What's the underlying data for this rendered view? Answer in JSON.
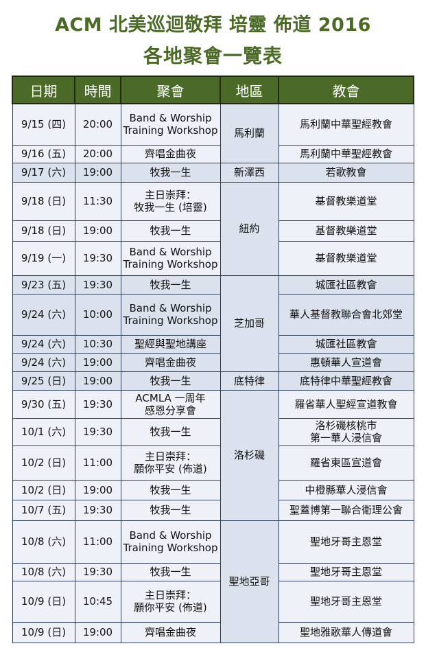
{
  "title_line1": "ACM 北美巡迴敬拜 培靈 佈道 2016",
  "title_line2": "各地聚會一覽表",
  "headers": [
    "日期",
    "時間",
    "聚會",
    "地區",
    "教會"
  ],
  "rows": [
    {
      "date": "9/15 (四)",
      "time": "20:00",
      "event": [
        "Band & Worship",
        "Training Workshop"
      ],
      "church": [
        "馬利蘭中華聖經教會"
      ]
    },
    {
      "date": "9/16 (五)",
      "time": "20:00",
      "event": [
        "齊唱金曲夜"
      ],
      "church": [
        "馬利蘭中華聖經教會"
      ]
    },
    {
      "date": "9/17 (六)",
      "time": "19:00",
      "event": [
        "牧我一生"
      ],
      "church": [
        "若歌教會"
      ]
    },
    {
      "date": "9/18 (日)",
      "time": "11:30",
      "event": [
        "主日崇拜：",
        "牧我一生 (培靈)"
      ],
      "church": [
        "基督教樂道堂"
      ]
    },
    {
      "date": "9/18 (日)",
      "time": "19:00",
      "event": [
        "牧我一生"
      ],
      "church": [
        "基督教樂道堂"
      ]
    },
    {
      "date": "9/19 (一)",
      "time": "19:30",
      "event": [
        "Band & Worship",
        "Training Workshop"
      ],
      "church": [
        "基督教樂道堂"
      ]
    },
    {
      "date": "9/23 (五)",
      "time": "19:30",
      "event": [
        "牧我一生"
      ],
      "church": [
        "城匯社區教會"
      ]
    },
    {
      "date": "9/24 (六)",
      "time": "10:00",
      "event": [
        "Band & Worship",
        "Training Workshop"
      ],
      "church": [
        "華人基督教聯合會北郊堂"
      ]
    },
    {
      "date": "9/24 (六)",
      "time": "10:30",
      "event": [
        "聖經與聖地講座"
      ],
      "church": [
        "城匯社區教會"
      ]
    },
    {
      "date": "9/24 (六)",
      "time": "19:00",
      "event": [
        "齊唱金曲夜"
      ],
      "church": [
        "惠頓華人宣道會"
      ]
    },
    {
      "date": "9/25 (日)",
      "time": "19:00",
      "event": [
        "牧我一生"
      ],
      "church": [
        "底特律中華聖經教會"
      ]
    },
    {
      "date": "9/30 (五)",
      "time": "19:30",
      "event": [
        "ACMLA 一周年",
        "感恩分享會"
      ],
      "church": [
        "羅省華人聖經宣道教會"
      ]
    },
    {
      "date": "10/1 (六)",
      "time": "19:30",
      "event": [
        "牧我一生"
      ],
      "church": [
        "洛杉磯核桃市",
        "第一華人浸信會"
      ]
    },
    {
      "date": "10/2 (日)",
      "time": "11:00",
      "event": [
        "主日崇拜：",
        "願你平安 (佈道)"
      ],
      "church": [
        "羅省東區宣道會"
      ]
    },
    {
      "date": "10/2 (日)",
      "time": "19:00",
      "event": [
        "牧我一生"
      ],
      "church": [
        "中橙縣華人浸信會"
      ]
    },
    {
      "date": "10/7 (五)",
      "time": "19:30",
      "event": [
        "牧我一生"
      ],
      "church": [
        "聖蓋博第一聯合衛理公會"
      ]
    },
    {
      "date": "10/8 (六)",
      "time": "11:00",
      "event": [
        "Band & Worship",
        "Training Workshop"
      ],
      "church": [
        "聖地牙哥主恩堂"
      ]
    },
    {
      "date": "10/8 (六)",
      "time": "19:30",
      "event": [
        "牧我一生"
      ],
      "church": [
        "聖地牙哥主恩堂"
      ]
    },
    {
      "date": "10/9 (日)",
      "time": "10:45",
      "event": [
        "主日崇拜：",
        "願你平安 (佈道)"
      ],
      "church": [
        "聖地牙哥主恩堂"
      ]
    },
    {
      "date": "10/9 (日)",
      "time": "19:00",
      "event": [
        "齊唱金曲夜"
      ],
      "church": [
        "聖地雅歌華人傳道會"
      ]
    }
  ],
  "regions": [
    {
      "name": "馬利蘭",
      "start": 0,
      "span": 2
    },
    {
      "name": "新澤西",
      "start": 2,
      "span": 1
    },
    {
      "name": "紐約",
      "start": 3,
      "span": 3
    },
    {
      "name": "芝加哥",
      "start": 6,
      "span": 4
    },
    {
      "name": "底特律",
      "start": 10,
      "span": 1
    },
    {
      "name": "洛杉磯",
      "start": 11,
      "span": 5
    },
    {
      "name": "聖地亞哥",
      "start": 16,
      "span": 4
    }
  ],
  "colors": {
    "title": "#4a6a25",
    "header_bg": "#4b6a27",
    "row_light": "#eef1f8",
    "row_dark": "#dbe2ee"
  }
}
